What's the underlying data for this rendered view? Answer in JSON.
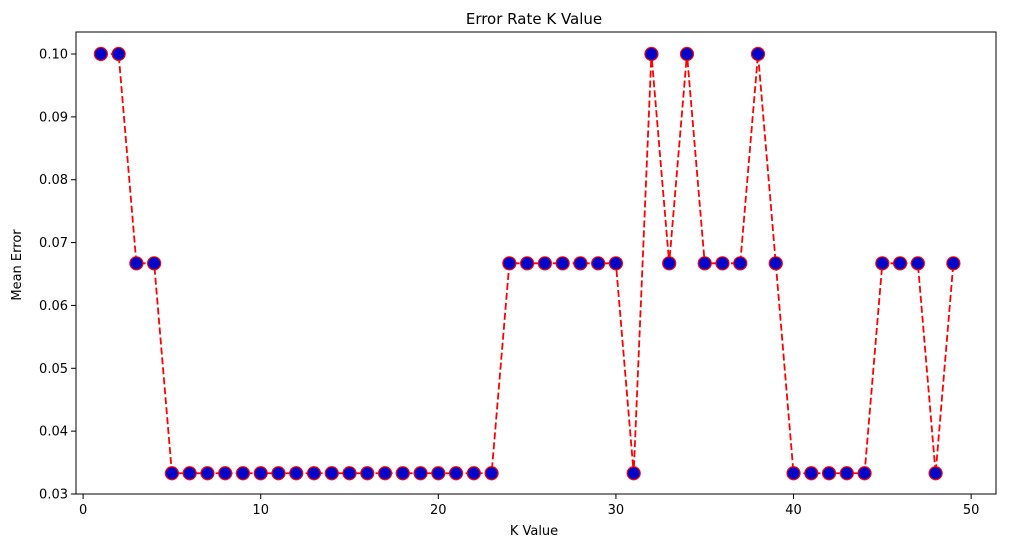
{
  "chart_data": {
    "type": "line",
    "title": "Error Rate K Value",
    "xlabel": "K Value",
    "ylabel": "Mean Error",
    "xlim": [
      -0.4,
      51.4
    ],
    "ylim": [
      0.03,
      0.1035
    ],
    "xticks": [
      0,
      10,
      20,
      30,
      40,
      50
    ],
    "yticks": [
      0.03,
      0.04,
      0.05,
      0.06,
      0.07,
      0.08,
      0.09,
      0.1
    ],
    "xtick_labels": [
      "0",
      "10",
      "20",
      "30",
      "40",
      "50"
    ],
    "ytick_labels": [
      "0.03",
      "0.04",
      "0.05",
      "0.06",
      "0.07",
      "0.08",
      "0.09",
      "0.10"
    ],
    "grid": false,
    "line_color": "#ff0000",
    "line_style": "dashed",
    "marker_face_color": "#0000cc",
    "marker_edge_color": "#ff0000",
    "x": [
      1,
      2,
      3,
      4,
      5,
      6,
      7,
      8,
      9,
      10,
      11,
      12,
      13,
      14,
      15,
      16,
      17,
      18,
      19,
      20,
      21,
      22,
      23,
      24,
      25,
      26,
      27,
      28,
      29,
      30,
      31,
      32,
      33,
      34,
      35,
      36,
      37,
      38,
      39,
      40,
      41,
      42,
      43,
      44,
      45,
      46,
      47,
      48,
      49
    ],
    "y": [
      0.1,
      0.1,
      0.0667,
      0.0667,
      0.0333,
      0.0333,
      0.0333,
      0.0333,
      0.0333,
      0.0333,
      0.0333,
      0.0333,
      0.0333,
      0.0333,
      0.0333,
      0.0333,
      0.0333,
      0.0333,
      0.0333,
      0.0333,
      0.0333,
      0.0333,
      0.0333,
      0.0667,
      0.0667,
      0.0667,
      0.0667,
      0.0667,
      0.0667,
      0.0667,
      0.0333,
      0.1,
      0.0667,
      0.1,
      0.0667,
      0.0667,
      0.0667,
      0.1,
      0.0667,
      0.0333,
      0.0333,
      0.0333,
      0.0333,
      0.0333,
      0.0667,
      0.0667,
      0.0667,
      0.0333,
      0.0667
    ]
  }
}
